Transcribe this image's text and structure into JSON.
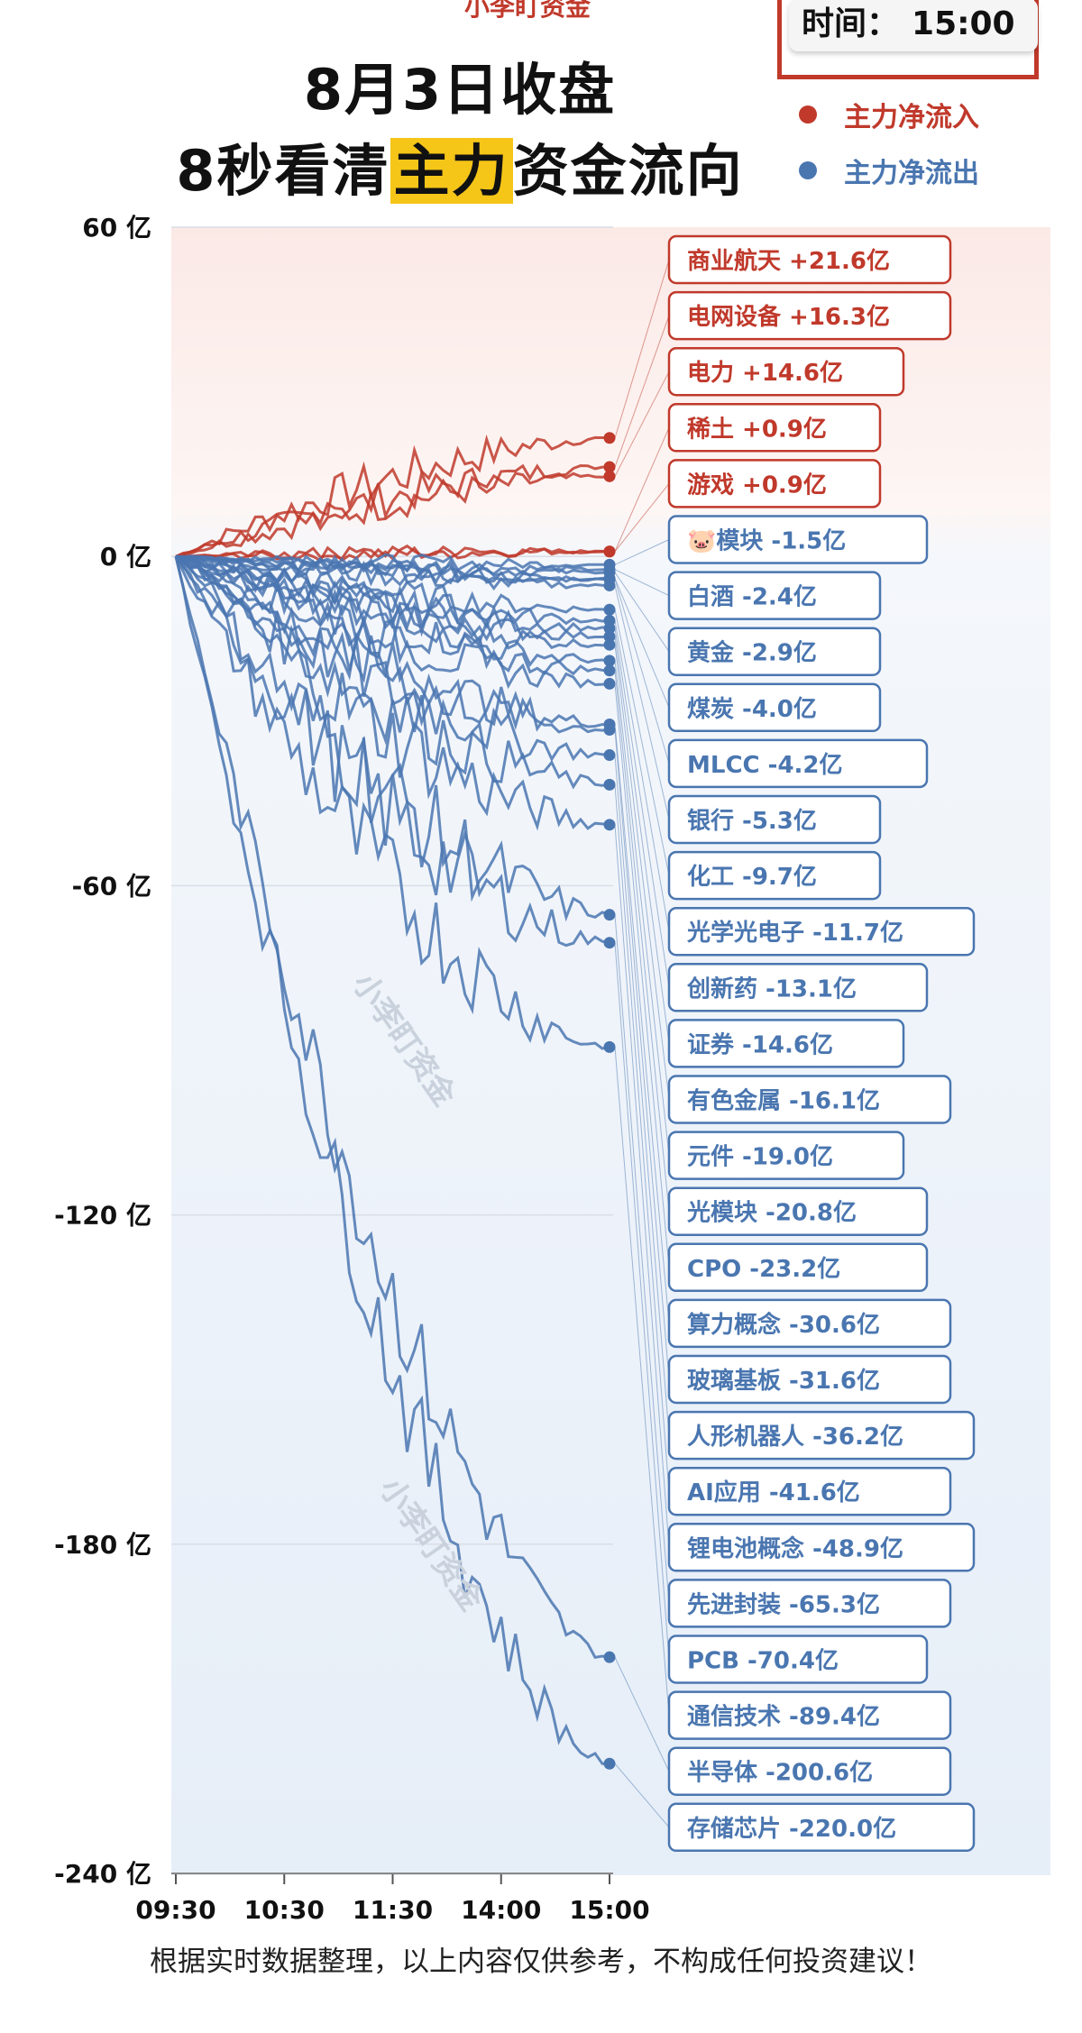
{
  "header": {
    "watermark_top": "小李盯资金",
    "title_line1": "8月3日收盘",
    "title_line2_before": "8秒看清",
    "title_line2_highlight": "主力",
    "title_line2_after": "资金流向",
    "time_label": "时间：",
    "time_value": "15:00"
  },
  "legend": {
    "inflow_label": "主力净流入",
    "outflow_label": "主力净流出"
  },
  "watermarks": [
    "小李盯资金",
    "小李盯资金"
  ],
  "footer": "根据实时数据整理，以上内容仅供参考，不构成任何投资建议！",
  "colors": {
    "inflow": "#c0392b",
    "outflow": "#4a76b0",
    "title_highlight": "#f5c518",
    "time_box_border": "#c0392b"
  },
  "chart_data": {
    "type": "line",
    "title": "8月3日收盘 8秒看清主力资金流向",
    "ylabel": "",
    "xlabel": "",
    "ylim": [
      -240,
      60
    ],
    "y_ticks": [
      "60 亿",
      "0 亿",
      "-60 亿",
      "-120 亿",
      "-180 亿",
      "-240 亿"
    ],
    "x_ticks": [
      "09:30",
      "10:30",
      "11:30",
      "14:00",
      "15:00"
    ],
    "grid": true,
    "unit": "亿",
    "series": [
      {
        "name": "商业航天",
        "value": 21.6,
        "label": "商业航天 +21.6亿",
        "dir": "in"
      },
      {
        "name": "电网设备",
        "value": 16.3,
        "label": "电网设备 +16.3亿",
        "dir": "in"
      },
      {
        "name": "电力",
        "value": 14.6,
        "label": "电力 +14.6亿",
        "dir": "in"
      },
      {
        "name": "稀土",
        "value": 0.9,
        "label": "稀土 +0.9亿",
        "dir": "in"
      },
      {
        "name": "游戏",
        "value": 0.9,
        "label": "游戏 +0.9亿",
        "dir": "in"
      },
      {
        "name": "模块",
        "value": -1.5,
        "label": "🐷模块 -1.5亿",
        "dir": "out"
      },
      {
        "name": "白酒",
        "value": -2.4,
        "label": "白酒 -2.4亿",
        "dir": "out"
      },
      {
        "name": "黄金",
        "value": -2.9,
        "label": "黄金 -2.9亿",
        "dir": "out"
      },
      {
        "name": "煤炭",
        "value": -4.0,
        "label": "煤炭 -4.0亿",
        "dir": "out"
      },
      {
        "name": "MLCC",
        "value": -4.2,
        "label": "MLCC -4.2亿",
        "dir": "out"
      },
      {
        "name": "银行",
        "value": -5.3,
        "label": "银行 -5.3亿",
        "dir": "out"
      },
      {
        "name": "化工",
        "value": -9.7,
        "label": "化工 -9.7亿",
        "dir": "out"
      },
      {
        "name": "光学光电子",
        "value": -11.7,
        "label": "光学光电子 -11.7亿",
        "dir": "out"
      },
      {
        "name": "创新药",
        "value": -13.1,
        "label": "创新药 -13.1亿",
        "dir": "out"
      },
      {
        "name": "证券",
        "value": -14.6,
        "label": "证券 -14.6亿",
        "dir": "out"
      },
      {
        "name": "有色金属",
        "value": -16.1,
        "label": "有色金属 -16.1亿",
        "dir": "out"
      },
      {
        "name": "元件",
        "value": -19.0,
        "label": "元件 -19.0亿",
        "dir": "out"
      },
      {
        "name": "光模块",
        "value": -20.8,
        "label": "光模块 -20.8亿",
        "dir": "out"
      },
      {
        "name": "CPO",
        "value": -23.2,
        "label": "CPO -23.2亿",
        "dir": "out"
      },
      {
        "name": "算力概念",
        "value": -30.6,
        "label": "算力概念 -30.6亿",
        "dir": "out"
      },
      {
        "name": "玻璃基板",
        "value": -31.6,
        "label": "玻璃基板 -31.6亿",
        "dir": "out"
      },
      {
        "name": "人形机器人",
        "value": -36.2,
        "label": "人形机器人 -36.2亿",
        "dir": "out"
      },
      {
        "name": "AI应用",
        "value": -41.6,
        "label": "AI应用 -41.6亿",
        "dir": "out"
      },
      {
        "name": "锂电池概念",
        "value": -48.9,
        "label": "锂电池概念 -48.9亿",
        "dir": "out"
      },
      {
        "name": "先进封装",
        "value": -65.3,
        "label": "先进封装 -65.3亿",
        "dir": "out"
      },
      {
        "name": "PCB",
        "value": -70.4,
        "label": "PCB -70.4亿",
        "dir": "out"
      },
      {
        "name": "通信技术",
        "value": -89.4,
        "label": "通信技术 -89.4亿",
        "dir": "out"
      },
      {
        "name": "半导体",
        "value": -200.6,
        "label": "半导体 -200.6亿",
        "dir": "out"
      },
      {
        "name": "存储芯片",
        "value": -220.0,
        "label": "存储芯片 -220.0亿",
        "dir": "out"
      }
    ]
  }
}
